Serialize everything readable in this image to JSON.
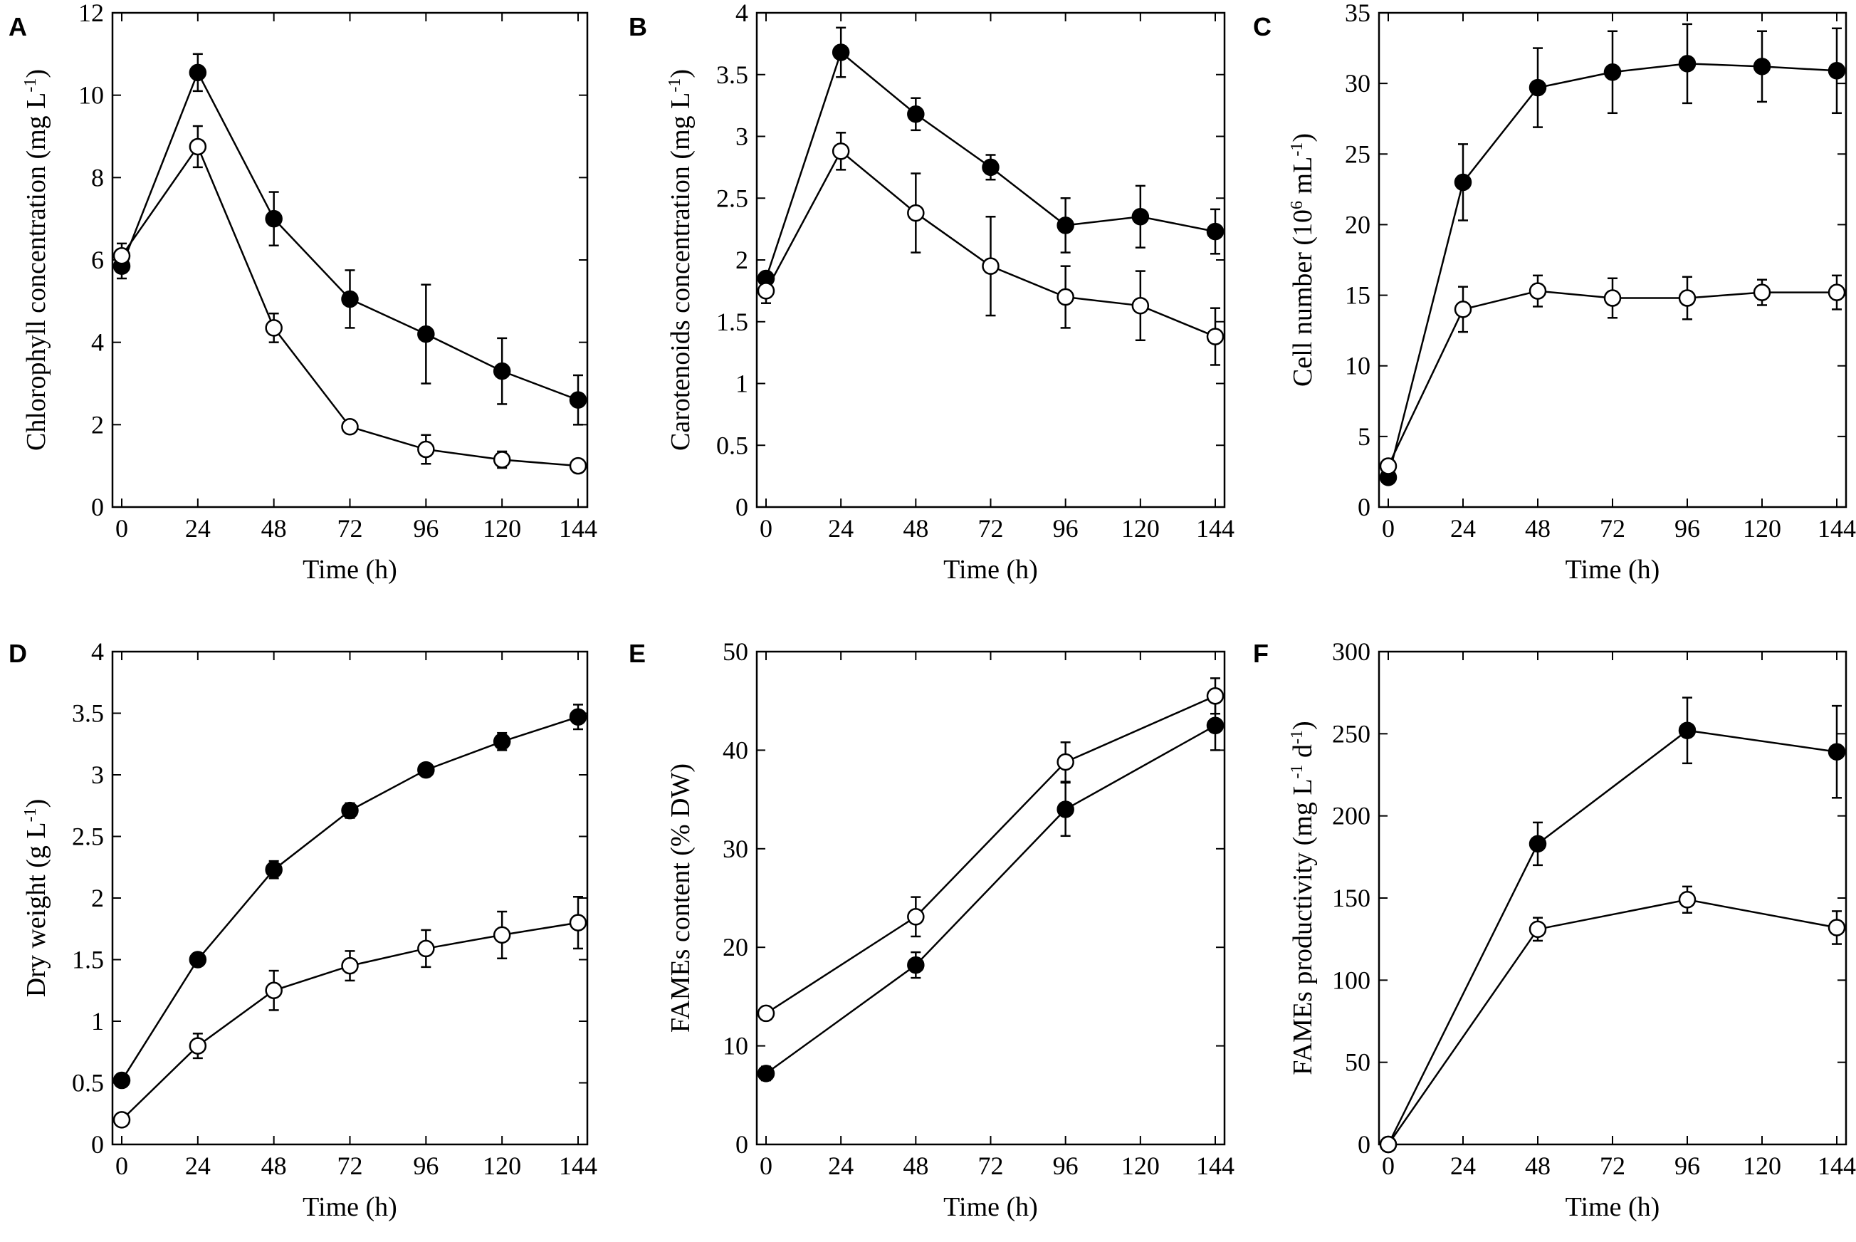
{
  "chart_data": [
    {
      "id": "A",
      "panel_label": "A",
      "type": "line",
      "title": "",
      "xlabel": "Time (h)",
      "ylabel_main": "Chlorophyll concentration (mg L",
      "ylabel_sup": "-1",
      "ylabel_end": ")",
      "xlim": [
        0,
        144
      ],
      "ylim": [
        0,
        12
      ],
      "xticks": [
        0,
        24,
        48,
        72,
        96,
        120,
        144
      ],
      "xtick_labels": [
        "0",
        "24",
        "48",
        "72",
        "96",
        "120",
        "144"
      ],
      "yticks": [
        0,
        2,
        4,
        6,
        8,
        10,
        12
      ],
      "ytick_labels": [
        "0",
        "2",
        "4",
        "6",
        "8",
        "10",
        "12"
      ],
      "series": [
        {
          "name": "filled",
          "marker": "filled-circle",
          "x": [
            0,
            24,
            48,
            72,
            96,
            120,
            144
          ],
          "values": [
            5.85,
            10.55,
            7.0,
            5.05,
            4.2,
            3.3,
            2.6
          ],
          "errors": [
            0.3,
            0.45,
            0.65,
            0.7,
            1.2,
            0.8,
            0.6
          ]
        },
        {
          "name": "open",
          "marker": "open-circle",
          "x": [
            0,
            24,
            48,
            72,
            96,
            120,
            144
          ],
          "values": [
            6.1,
            8.75,
            4.35,
            1.95,
            1.4,
            1.15,
            1.0
          ],
          "errors": [
            0.3,
            0.5,
            0.35,
            0.15,
            0.35,
            0.2,
            0.15
          ]
        }
      ]
    },
    {
      "id": "B",
      "panel_label": "B",
      "type": "line",
      "title": "",
      "xlabel": "Time (h)",
      "ylabel_main": "Carotenoids concentration (mg L",
      "ylabel_sup": "-1",
      "ylabel_end": ")",
      "xlim": [
        0,
        144
      ],
      "ylim": [
        0,
        4
      ],
      "xticks": [
        0,
        24,
        48,
        72,
        96,
        120,
        144
      ],
      "xtick_labels": [
        "0",
        "24",
        "48",
        "72",
        "96",
        "120",
        "144"
      ],
      "yticks": [
        0,
        0.5,
        1,
        1.5,
        2,
        2.5,
        3,
        3.5,
        4
      ],
      "ytick_labels": [
        "0",
        "0.5",
        "1",
        "1.5",
        "2",
        "2.5",
        "3",
        "3.5",
        "4"
      ],
      "series": [
        {
          "name": "filled",
          "marker": "filled-circle",
          "x": [
            0,
            24,
            48,
            72,
            96,
            120,
            144
          ],
          "values": [
            1.85,
            3.68,
            3.18,
            2.75,
            2.28,
            2.35,
            2.23
          ],
          "errors": [
            0.05,
            0.2,
            0.13,
            0.1,
            0.22,
            0.25,
            0.18
          ]
        },
        {
          "name": "open",
          "marker": "open-circle",
          "x": [
            0,
            24,
            48,
            72,
            96,
            120,
            144
          ],
          "values": [
            1.75,
            2.88,
            2.38,
            1.95,
            1.7,
            1.63,
            1.38
          ],
          "errors": [
            0.1,
            0.15,
            0.32,
            0.4,
            0.25,
            0.28,
            0.23
          ]
        }
      ]
    },
    {
      "id": "C",
      "panel_label": "C",
      "type": "line",
      "title": "",
      "xlabel": "Time (h)",
      "ylabel_main": "Cell number (10",
      "ylabel_sup": "6",
      "ylabel_mid": "  mL",
      "ylabel_sup2": "-1",
      "ylabel_end": ")",
      "xlim": [
        0,
        144
      ],
      "ylim": [
        0,
        35
      ],
      "xticks": [
        0,
        24,
        48,
        72,
        96,
        120,
        144
      ],
      "xtick_labels": [
        "0",
        "24",
        "48",
        "72",
        "96",
        "120",
        "144"
      ],
      "yticks": [
        0,
        5,
        10,
        15,
        20,
        25,
        30,
        35
      ],
      "ytick_labels": [
        "0",
        "5",
        "10",
        "15",
        "20",
        "25",
        "30",
        "35"
      ],
      "series": [
        {
          "name": "filled",
          "marker": "filled-circle",
          "x": [
            0,
            24,
            48,
            72,
            96,
            120,
            144
          ],
          "values": [
            2.1,
            23.0,
            29.7,
            30.8,
            31.4,
            31.2,
            30.9
          ],
          "errors": [
            0.4,
            2.7,
            2.8,
            2.9,
            2.8,
            2.5,
            3.0
          ]
        },
        {
          "name": "open",
          "marker": "open-circle",
          "x": [
            0,
            24,
            48,
            72,
            96,
            120,
            144
          ],
          "values": [
            2.9,
            14.0,
            15.3,
            14.8,
            14.8,
            15.2,
            15.2
          ],
          "errors": [
            0.3,
            1.6,
            1.1,
            1.4,
            1.5,
            0.9,
            1.2
          ]
        }
      ]
    },
    {
      "id": "D",
      "panel_label": "D",
      "type": "line",
      "title": "",
      "xlabel": "Time (h)",
      "ylabel_main": "Dry weight (g L",
      "ylabel_sup": "-1",
      "ylabel_end": ")",
      "xlim": [
        0,
        144
      ],
      "ylim": [
        0,
        4
      ],
      "xticks": [
        0,
        24,
        48,
        72,
        96,
        120,
        144
      ],
      "xtick_labels": [
        "0",
        "24",
        "48",
        "72",
        "96",
        "120",
        "144"
      ],
      "yticks": [
        0,
        0.5,
        1,
        1.5,
        2,
        2.5,
        3,
        3.5,
        4
      ],
      "ytick_labels": [
        "0",
        "0.5",
        "1",
        "1.5",
        "2",
        "2.5",
        "3",
        "3.5",
        "4"
      ],
      "series": [
        {
          "name": "filled",
          "marker": "filled-circle",
          "x": [
            0,
            24,
            48,
            72,
            96,
            120,
            144
          ],
          "values": [
            0.52,
            1.5,
            2.23,
            2.71,
            3.04,
            3.27,
            3.47
          ],
          "errors": [
            0.04,
            0.05,
            0.07,
            0.06,
            0.04,
            0.07,
            0.1
          ]
        },
        {
          "name": "open",
          "marker": "open-circle",
          "x": [
            0,
            24,
            48,
            72,
            96,
            120,
            144
          ],
          "values": [
            0.2,
            0.8,
            1.25,
            1.45,
            1.59,
            1.7,
            1.8
          ],
          "errors": [
            0.04,
            0.1,
            0.16,
            0.12,
            0.15,
            0.19,
            0.21
          ]
        }
      ]
    },
    {
      "id": "E",
      "panel_label": "E",
      "type": "line",
      "title": "",
      "xlabel": "Time (h)",
      "ylabel_main": "FAMEs content (% DW)",
      "ylabel_sup": "",
      "ylabel_end": "",
      "xlim": [
        0,
        144
      ],
      "ylim": [
        0,
        50
      ],
      "xticks": [
        0,
        24,
        48,
        72,
        96,
        120,
        144
      ],
      "xtick_labels": [
        "0",
        "24",
        "48",
        "72",
        "96",
        "120",
        "144"
      ],
      "yticks": [
        0,
        10,
        20,
        30,
        40,
        50
      ],
      "ytick_labels": [
        "0",
        "10",
        "20",
        "30",
        "40",
        "50"
      ],
      "series": [
        {
          "name": "filled",
          "marker": "filled-circle",
          "x": [
            0,
            48,
            96,
            144
          ],
          "values": [
            7.2,
            18.2,
            34.0,
            42.5
          ],
          "errors": [
            0.7,
            1.3,
            2.7,
            2.5
          ]
        },
        {
          "name": "open",
          "marker": "open-circle",
          "x": [
            0,
            48,
            96,
            144
          ],
          "values": [
            13.3,
            23.1,
            38.8,
            45.5
          ],
          "errors": [
            0.6,
            2.0,
            2.0,
            1.8
          ]
        }
      ]
    },
    {
      "id": "F",
      "panel_label": "F",
      "type": "line",
      "title": "",
      "xlabel": "Time (h)",
      "ylabel_main": "FAMEs productivity (mg L",
      "ylabel_sup": "-1",
      "ylabel_mid": " d",
      "ylabel_sup2": "-1",
      "ylabel_end": ")",
      "xlim": [
        0,
        144
      ],
      "ylim": [
        0,
        300
      ],
      "xticks": [
        0,
        24,
        48,
        72,
        96,
        120,
        144
      ],
      "xtick_labels": [
        "0",
        "24",
        "48",
        "72",
        "96",
        "120",
        "144"
      ],
      "yticks": [
        0,
        50,
        100,
        150,
        200,
        250,
        300
      ],
      "ytick_labels": [
        "0",
        "50",
        "100",
        "150",
        "200",
        "250",
        "300"
      ],
      "series": [
        {
          "name": "filled",
          "marker": "filled-circle",
          "x": [
            0,
            48,
            96,
            144
          ],
          "values": [
            0,
            183,
            252,
            239
          ],
          "errors": [
            0,
            13,
            20,
            28
          ]
        },
        {
          "name": "open",
          "marker": "open-circle",
          "x": [
            0,
            48,
            96,
            144
          ],
          "values": [
            0,
            131,
            149,
            132
          ],
          "errors": [
            0,
            7,
            8,
            10
          ]
        }
      ]
    }
  ]
}
